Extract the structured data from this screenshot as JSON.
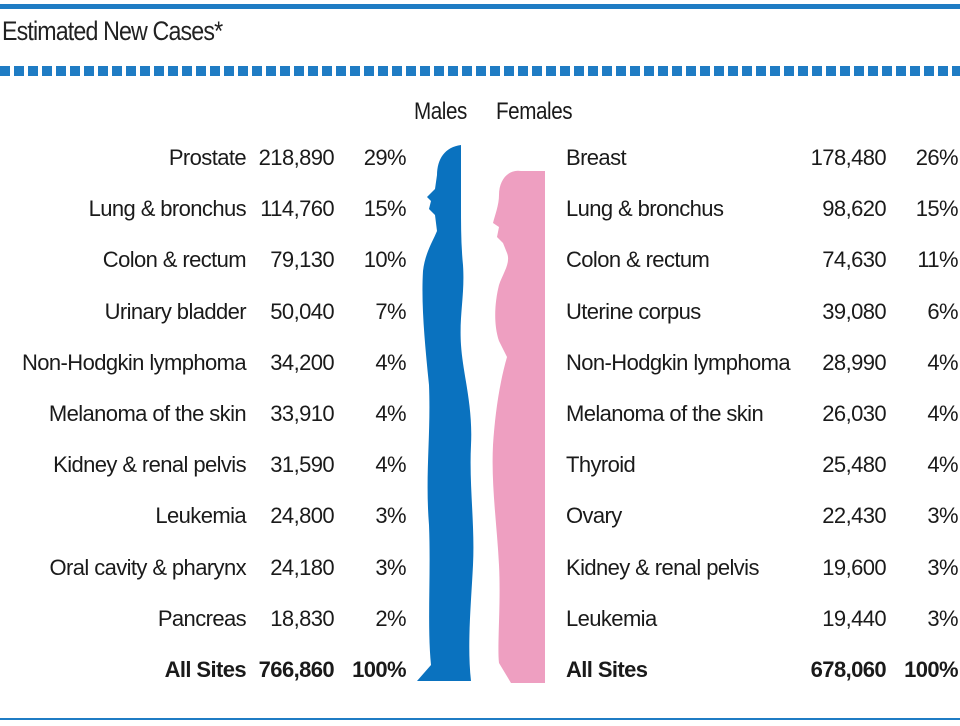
{
  "title": "Estimated New Cases*",
  "headers": {
    "males": "Males",
    "females": "Females"
  },
  "colors": {
    "male": "#0a72bf",
    "female": "#ee9fc1",
    "rule": "#1f7cc4"
  },
  "males": [
    {
      "site": "Prostate",
      "cases": "218,890",
      "pct": "29%"
    },
    {
      "site": "Lung & bronchus",
      "cases": "114,760",
      "pct": "15%"
    },
    {
      "site": "Colon & rectum",
      "cases": "79,130",
      "pct": "10%"
    },
    {
      "site": "Urinary bladder",
      "cases": "50,040",
      "pct": "7%"
    },
    {
      "site": "Non-Hodgkin lymphoma",
      "cases": "34,200",
      "pct": "4%"
    },
    {
      "site": "Melanoma of the skin",
      "cases": "33,910",
      "pct": "4%"
    },
    {
      "site": "Kidney & renal pelvis",
      "cases": "31,590",
      "pct": "4%"
    },
    {
      "site": "Leukemia",
      "cases": "24,800",
      "pct": "3%"
    },
    {
      "site": "Oral cavity & pharynx",
      "cases": "24,180",
      "pct": "3%"
    },
    {
      "site": "Pancreas",
      "cases": "18,830",
      "pct": "2%"
    },
    {
      "site": "All Sites",
      "cases": "766,860",
      "pct": "100%"
    }
  ],
  "females": [
    {
      "site": "Breast",
      "cases": "178,480",
      "pct": "26%"
    },
    {
      "site": "Lung & bronchus",
      "cases": "98,620",
      "pct": "15%"
    },
    {
      "site": "Colon & rectum",
      "cases": "74,630",
      "pct": "11%"
    },
    {
      "site": "Uterine corpus",
      "cases": "39,080",
      "pct": "6%"
    },
    {
      "site": "Non-Hodgkin lymphoma",
      "cases": "28,990",
      "pct": "4%"
    },
    {
      "site": "Melanoma of the skin",
      "cases": "26,030",
      "pct": "4%"
    },
    {
      "site": "Thyroid",
      "cases": "25,480",
      "pct": "4%"
    },
    {
      "site": "Ovary",
      "cases": "22,430",
      "pct": "3%"
    },
    {
      "site": "Kidney & renal pelvis",
      "cases": "19,600",
      "pct": "3%"
    },
    {
      "site": "Leukemia",
      "cases": "19,440",
      "pct": "3%"
    },
    {
      "site": "All Sites",
      "cases": "678,060",
      "pct": "100%"
    }
  ]
}
